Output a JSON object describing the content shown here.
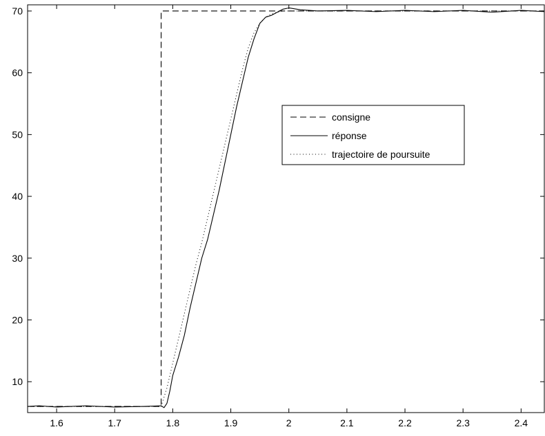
{
  "chart_data": {
    "type": "line",
    "title": "",
    "xlabel": "",
    "ylabel": "",
    "xlim": [
      1.55,
      2.44
    ],
    "ylim": [
      5,
      71
    ],
    "xticks": [
      1.6,
      1.7,
      1.8,
      1.9,
      2,
      2.1,
      2.2,
      2.3,
      2.4
    ],
    "xtick_labels": [
      "1.6",
      "1.7",
      "1.8",
      "1.9",
      "2",
      "2.1",
      "2.2",
      "2.3",
      "2.4"
    ],
    "yticks": [
      10,
      20,
      30,
      40,
      50,
      60,
      70
    ],
    "ytick_labels": [
      "10",
      "20",
      "30",
      "40",
      "50",
      "60",
      "70"
    ],
    "grid": false,
    "legend_position": "upper-center-right",
    "series": [
      {
        "name": "consigne",
        "style": "dashed",
        "color": "#000000",
        "x": [
          1.55,
          1.78,
          1.78,
          2.44
        ],
        "y": [
          6,
          6,
          70,
          70
        ]
      },
      {
        "name": "réponse",
        "style": "solid",
        "color": "#000000",
        "x": [
          1.55,
          1.57,
          1.6,
          1.65,
          1.7,
          1.75,
          1.78,
          1.785,
          1.79,
          1.795,
          1.8,
          1.81,
          1.82,
          1.83,
          1.84,
          1.85,
          1.86,
          1.87,
          1.88,
          1.89,
          1.9,
          1.91,
          1.92,
          1.93,
          1.94,
          1.95,
          1.96,
          1.97,
          1.98,
          1.99,
          2.0,
          2.02,
          2.05,
          2.1,
          2.15,
          2.2,
          2.25,
          2.3,
          2.35,
          2.4,
          2.44
        ],
        "y": [
          6.0,
          6.1,
          5.9,
          6.1,
          5.9,
          6.0,
          6.1,
          5.8,
          6.5,
          8.5,
          11.0,
          14.0,
          17.5,
          22.0,
          26.0,
          30.0,
          33.0,
          37.0,
          41.0,
          45.5,
          50.0,
          54.5,
          58.5,
          62.5,
          65.5,
          68.0,
          69.0,
          69.3,
          69.8,
          70.3,
          70.5,
          70.2,
          70.0,
          70.1,
          69.9,
          70.1,
          69.9,
          70.1,
          69.8,
          70.1,
          69.9
        ]
      },
      {
        "name": "trajectoire de poursuite",
        "style": "dotted",
        "color": "#000000",
        "x": [
          1.55,
          1.78,
          1.79,
          1.8,
          1.81,
          1.82,
          1.83,
          1.84,
          1.85,
          1.86,
          1.87,
          1.88,
          1.89,
          1.9,
          1.91,
          1.92,
          1.93,
          1.94,
          1.95,
          1.96,
          1.97,
          1.98,
          1.99,
          2.0,
          2.05,
          2.44
        ],
        "y": [
          6.0,
          6.0,
          9.0,
          13.0,
          17.0,
          21.0,
          25.0,
          29.0,
          32.5,
          36.5,
          40.5,
          44.5,
          48.5,
          52.5,
          56.5,
          60.5,
          64.0,
          66.5,
          68.0,
          69.0,
          69.5,
          69.8,
          70.0,
          70.0,
          70.0,
          70.0
        ]
      }
    ]
  }
}
